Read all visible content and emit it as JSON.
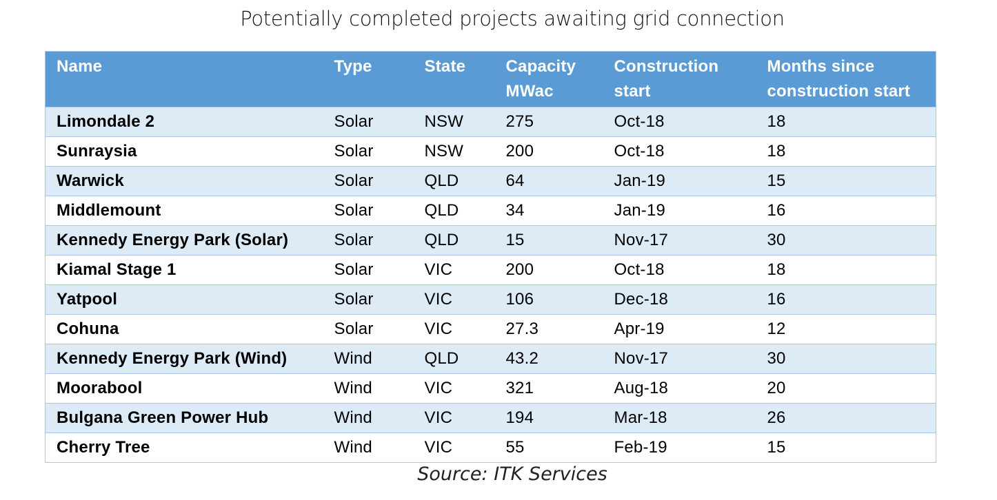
{
  "title": "Potentially completed projects awaiting grid connection",
  "columns": [
    "Name",
    "Type",
    "State",
    "Capacity MWac",
    "Construction start",
    "Months since construction start"
  ],
  "rows": [
    [
      "Limondale 2",
      "Solar",
      "NSW",
      "275",
      "Oct-18",
      "18"
    ],
    [
      "Sunraysia",
      "Solar",
      "NSW",
      "200",
      "Oct-18",
      "18"
    ],
    [
      "Warwick",
      "Solar",
      "QLD",
      "64",
      "Jan-19",
      "15"
    ],
    [
      "Middlemount",
      "Solar",
      "QLD",
      "34",
      "Jan-19",
      "16"
    ],
    [
      "Kennedy Energy Park (Solar)",
      "Solar",
      "QLD",
      "15",
      "Nov-17",
      "30"
    ],
    [
      "Kiamal Stage 1",
      "Solar",
      "VIC",
      "200",
      "Oct-18",
      "18"
    ],
    [
      "Yatpool",
      "Solar",
      "VIC",
      "106",
      "Dec-18",
      "16"
    ],
    [
      "Cohuna",
      "Solar",
      "VIC",
      "27.3",
      "Apr-19",
      "12"
    ],
    [
      "Kennedy Energy Park (Wind)",
      "Wind",
      "QLD",
      "43.2",
      "Nov-17",
      "30"
    ],
    [
      "Moorabool",
      "Wind",
      "VIC",
      "321",
      "Aug-18",
      "20"
    ],
    [
      "Bulgana Green Power Hub",
      "Wind",
      "VIC",
      "194",
      "Mar-18",
      "26"
    ],
    [
      "Cherry Tree",
      "Wind",
      "VIC",
      "55",
      "Feb-19",
      "15"
    ]
  ],
  "source": "Source: ITK Services",
  "colors": {
    "header_bg": "#5b9bd5",
    "header_text": "#ffffff",
    "band_row": "#ddebf7",
    "plain_row": "#ffffff",
    "border": "#a9c6e6"
  }
}
